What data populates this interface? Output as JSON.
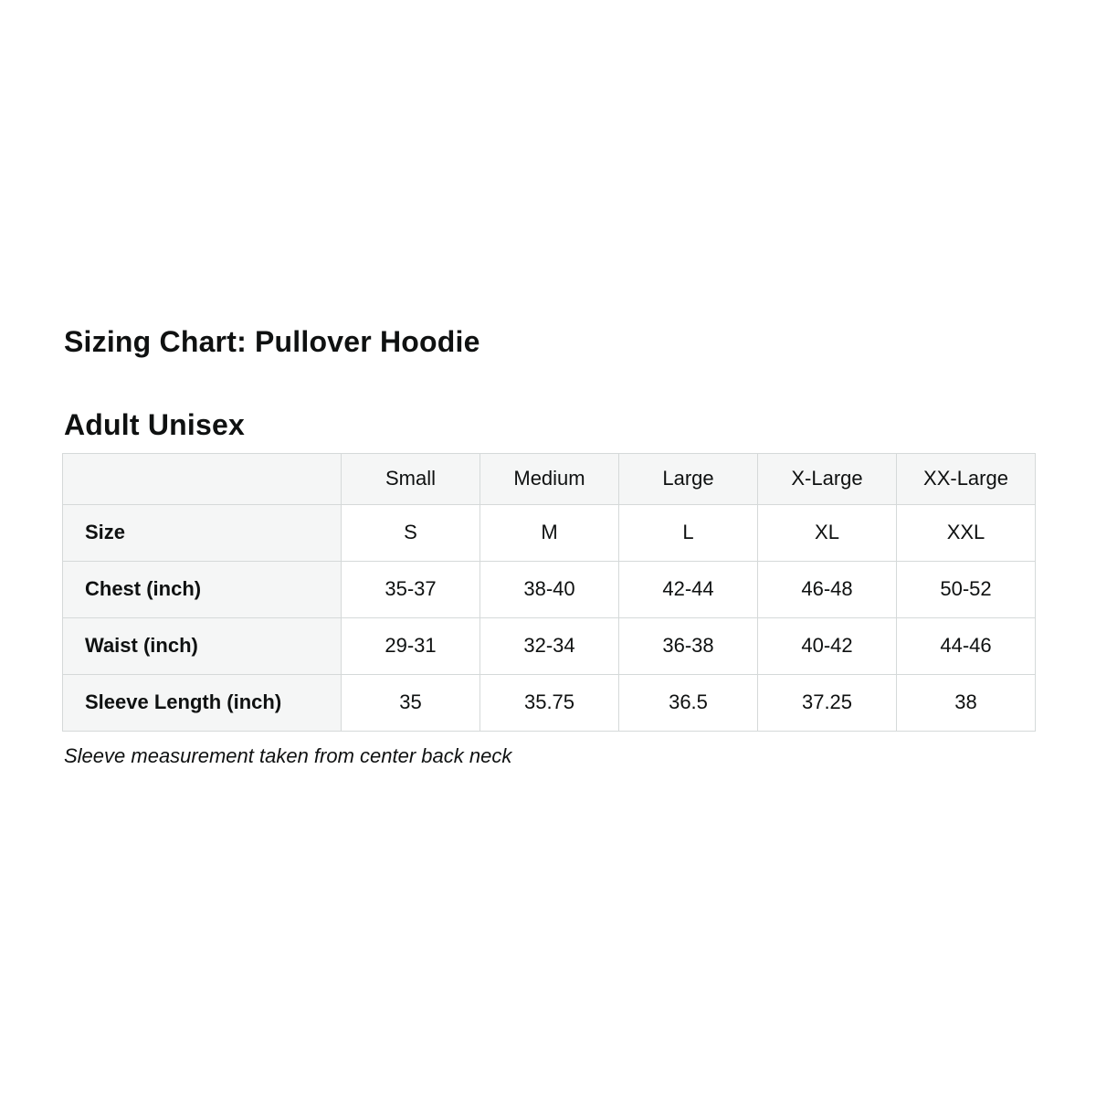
{
  "colors": {
    "text": "#0f1111",
    "border": "#d5d9d9",
    "shade_bg": "#f5f6f6",
    "background": "#ffffff"
  },
  "page": {
    "title": "Sizing Chart: Pullover Hoodie",
    "subtitle": "Adult Unisex",
    "footnote": "Sleeve measurement taken from center back neck"
  },
  "chart_data": {
    "type": "table",
    "title": "Sizing Chart: Pullover Hoodie",
    "subtitle": "Adult Unisex",
    "columns": [
      "",
      "Small",
      "Medium",
      "Large",
      "X-Large",
      "XX-Large"
    ],
    "rows": [
      {
        "label": "Size",
        "values": [
          "S",
          "M",
          "L",
          "XL",
          "XXL"
        ]
      },
      {
        "label": "Chest (inch)",
        "values": [
          "35-37",
          "38-40",
          "42-44",
          "46-48",
          "50-52"
        ]
      },
      {
        "label": "Waist (inch)",
        "values": [
          "29-31",
          "32-34",
          "36-38",
          "40-42",
          "44-46"
        ]
      },
      {
        "label": "Sleeve Length (inch)",
        "values": [
          "35",
          "35.75",
          "36.5",
          "37.25",
          "38"
        ]
      }
    ],
    "footnote": "Sleeve measurement taken from center back neck",
    "layout": {
      "grid": true,
      "header_row_shaded": true,
      "label_column_shaded": true
    }
  }
}
